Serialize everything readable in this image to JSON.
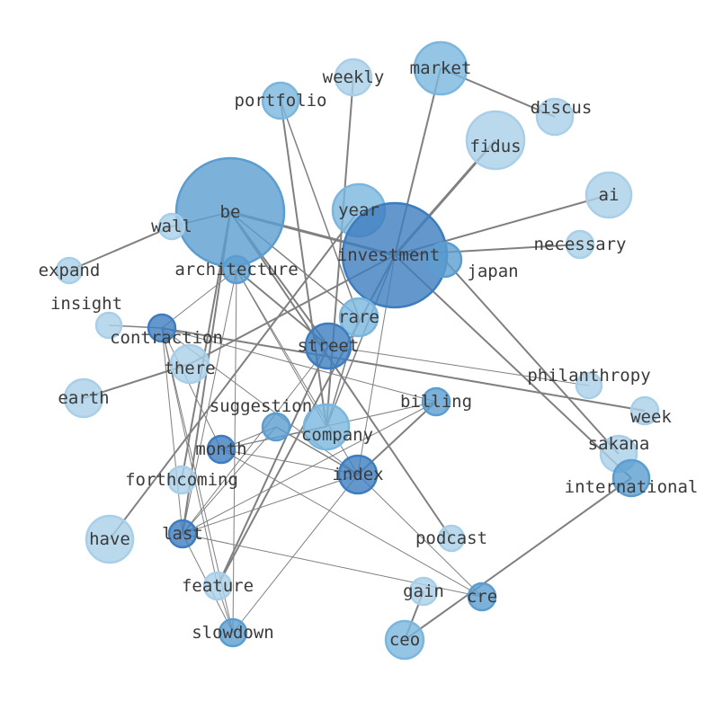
{
  "graph": {
    "colors": {
      "dark": "#3d7dbf",
      "medium": "#5b9dd0",
      "light_medium": "#7ab6de",
      "light": "#a9cfe8",
      "edge": "#808080",
      "label": "#3a3a3a"
    },
    "nodes": [
      {
        "id": "market",
        "tone": "light_medium"
      },
      {
        "id": "weekly",
        "tone": "light"
      },
      {
        "id": "portfolio",
        "tone": "light_medium"
      },
      {
        "id": "discus",
        "tone": "light"
      },
      {
        "id": "fidus",
        "tone": "light"
      },
      {
        "id": "ai",
        "tone": "light"
      },
      {
        "id": "be",
        "tone": "medium"
      },
      {
        "id": "wall",
        "tone": "light"
      },
      {
        "id": "year",
        "tone": "light_medium"
      },
      {
        "id": "investment",
        "tone": "dark"
      },
      {
        "id": "japan",
        "tone": "medium"
      },
      {
        "id": "necessary",
        "tone": "light"
      },
      {
        "id": "expand",
        "tone": "light"
      },
      {
        "id": "architecture",
        "tone": "medium"
      },
      {
        "id": "insight",
        "tone": "light"
      },
      {
        "id": "contraction",
        "tone": "dark"
      },
      {
        "id": "rare",
        "tone": "light_medium"
      },
      {
        "id": "street",
        "tone": "dark"
      },
      {
        "id": "there",
        "tone": "light"
      },
      {
        "id": "earth",
        "tone": "light"
      },
      {
        "id": "philanthropy",
        "tone": "light"
      },
      {
        "id": "week",
        "tone": "light"
      },
      {
        "id": "billing",
        "tone": "medium"
      },
      {
        "id": "suggestion",
        "tone": "medium"
      },
      {
        "id": "company",
        "tone": "light_medium"
      },
      {
        "id": "month",
        "tone": "dark"
      },
      {
        "id": "forthcoming",
        "tone": "light"
      },
      {
        "id": "index",
        "tone": "dark"
      },
      {
        "id": "sakana",
        "tone": "light"
      },
      {
        "id": "international",
        "tone": "medium"
      },
      {
        "id": "have",
        "tone": "light"
      },
      {
        "id": "last",
        "tone": "dark"
      },
      {
        "id": "podcast",
        "tone": "light"
      },
      {
        "id": "feature",
        "tone": "light"
      },
      {
        "id": "gain",
        "tone": "light"
      },
      {
        "id": "cre",
        "tone": "medium"
      },
      {
        "id": "slowdown",
        "tone": "medium"
      },
      {
        "id": "ceo",
        "tone": "light_medium"
      }
    ],
    "edges": [
      {
        "source": "fidus",
        "target": "investment",
        "weight": 3
      },
      {
        "source": "be",
        "target": "investment",
        "weight": 3
      },
      {
        "source": "market",
        "target": "investment",
        "weight": 2
      },
      {
        "source": "market",
        "target": "discus",
        "weight": 2
      },
      {
        "source": "weekly",
        "target": "company",
        "weight": 2
      },
      {
        "source": "portfolio",
        "target": "rare",
        "weight": 1.5
      },
      {
        "source": "portfolio",
        "target": "company",
        "weight": 2
      },
      {
        "source": "ai",
        "target": "investment",
        "weight": 2
      },
      {
        "source": "necessary",
        "target": "investment",
        "weight": 2
      },
      {
        "source": "japan",
        "target": "sakana",
        "weight": 2
      },
      {
        "source": "investment",
        "target": "international",
        "weight": 2
      },
      {
        "source": "wall",
        "target": "expand",
        "weight": 2
      },
      {
        "source": "wall",
        "target": "be",
        "weight": 1.5
      },
      {
        "source": "be",
        "target": "street",
        "weight": 2
      },
      {
        "source": "be",
        "target": "podcast",
        "weight": 2
      },
      {
        "source": "be",
        "target": "last",
        "weight": 2
      },
      {
        "source": "be",
        "target": "forthcoming",
        "weight": 2
      },
      {
        "source": "be",
        "target": "rare",
        "weight": 1.5
      },
      {
        "source": "year",
        "target": "have",
        "weight": 2
      },
      {
        "source": "investment",
        "target": "there",
        "weight": 2
      },
      {
        "source": "investment",
        "target": "feature",
        "weight": 2
      },
      {
        "source": "investment",
        "target": "index",
        "weight": 1
      },
      {
        "source": "investment",
        "target": "company",
        "weight": 1.5
      },
      {
        "source": "contraction",
        "target": "week",
        "weight": 2
      },
      {
        "source": "contraction",
        "target": "insight",
        "weight": 1.5
      },
      {
        "source": "earth",
        "target": "there",
        "weight": 2
      },
      {
        "source": "street",
        "target": "philanthropy",
        "weight": 1
      },
      {
        "source": "ceo",
        "target": "international",
        "weight": 2
      },
      {
        "source": "ceo",
        "target": "gain",
        "weight": 2
      },
      {
        "source": "billing",
        "target": "index",
        "weight": 2
      },
      {
        "source": "billing",
        "target": "last",
        "weight": 1
      },
      {
        "source": "billing",
        "target": "month",
        "weight": 1
      },
      {
        "source": "index",
        "target": "month",
        "weight": 1
      },
      {
        "source": "index",
        "target": "last",
        "weight": 1
      },
      {
        "source": "index",
        "target": "slowdown",
        "weight": 1
      },
      {
        "source": "index",
        "target": "suggestion",
        "weight": 1.5
      },
      {
        "source": "index",
        "target": "cre",
        "weight": 1
      },
      {
        "source": "last",
        "target": "cre",
        "weight": 1
      },
      {
        "source": "last",
        "target": "suggestion",
        "weight": 1
      },
      {
        "source": "architecture",
        "target": "contraction",
        "weight": 1
      },
      {
        "source": "architecture",
        "target": "street",
        "weight": 2
      },
      {
        "source": "architecture",
        "target": "last",
        "weight": 1
      },
      {
        "source": "architecture",
        "target": "slowdown",
        "weight": 1
      },
      {
        "source": "architecture",
        "target": "index",
        "weight": 1
      },
      {
        "source": "architecture",
        "target": "company",
        "weight": 1
      },
      {
        "source": "contraction",
        "target": "month",
        "weight": 1
      },
      {
        "source": "contraction",
        "target": "last",
        "weight": 1
      },
      {
        "source": "contraction",
        "target": "feature",
        "weight": 1
      },
      {
        "source": "contraction",
        "target": "slowdown",
        "weight": 1
      },
      {
        "source": "contraction",
        "target": "index",
        "weight": 1
      },
      {
        "source": "contraction",
        "target": "billing",
        "weight": 1
      },
      {
        "source": "month",
        "target": "suggestion",
        "weight": 1
      },
      {
        "source": "month",
        "target": "company",
        "weight": 1
      },
      {
        "source": "month",
        "target": "cre",
        "weight": 1
      },
      {
        "source": "street",
        "target": "feature",
        "weight": 2
      },
      {
        "source": "street",
        "target": "last",
        "weight": 1
      },
      {
        "source": "rare",
        "target": "company",
        "weight": 1.5
      },
      {
        "source": "last",
        "target": "slowdown",
        "weight": 1
      },
      {
        "source": "feature",
        "target": "slowdown",
        "weight": 1
      }
    ]
  }
}
